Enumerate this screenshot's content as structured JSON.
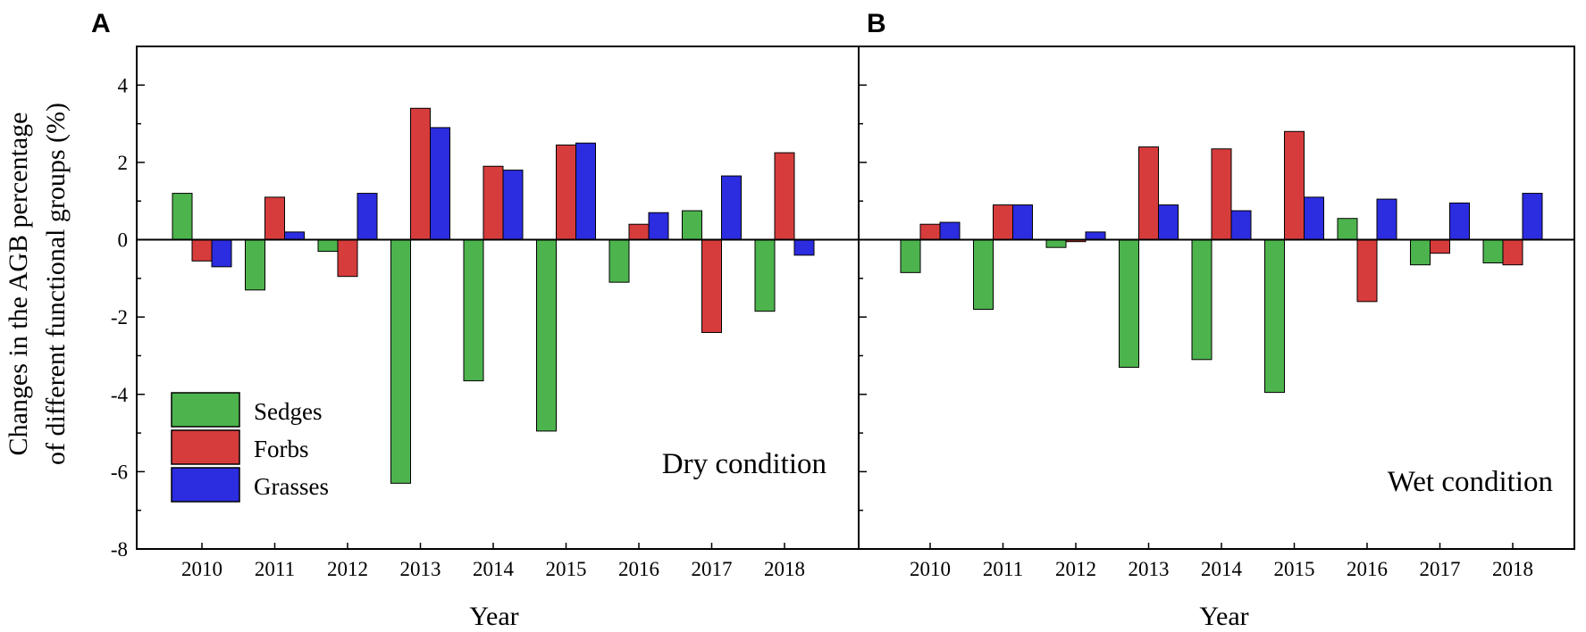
{
  "chart_data": {
    "type": "bar",
    "ylabel_lines": [
      "Changes in the AGB percentage",
      "of different functional groups (%)"
    ],
    "xlabel": "Year",
    "ylim": [
      -8,
      5
    ],
    "yticks": [
      4,
      2,
      0,
      -2,
      -4,
      -6,
      -8
    ],
    "ytick_labels": [
      "4",
      "2",
      "0",
      "-2",
      "-4",
      "-6",
      "-8"
    ],
    "categories": [
      "2010",
      "2011",
      "2012",
      "2013",
      "2014",
      "2015",
      "2016",
      "2017",
      "2018"
    ],
    "legend": [
      {
        "name": "Sedges",
        "color": "#4db34d"
      },
      {
        "name": "Forbs",
        "color": "#d63c3c"
      },
      {
        "name": "Grasses",
        "color": "#2c2ce0"
      }
    ],
    "panels": [
      {
        "letter": "A",
        "condition": "Dry condition",
        "series": [
          {
            "name": "Sedges",
            "values": [
              1.2,
              -1.3,
              -0.3,
              -6.3,
              -3.65,
              -4.95,
              -1.1,
              0.75,
              -1.85
            ]
          },
          {
            "name": "Forbs",
            "values": [
              -0.55,
              1.1,
              -0.95,
              3.4,
              1.9,
              2.45,
              0.4,
              -2.4,
              2.25
            ]
          },
          {
            "name": "Grasses",
            "values": [
              -0.7,
              0.2,
              1.2,
              2.9,
              1.8,
              2.5,
              0.7,
              1.65,
              -0.4
            ]
          }
        ]
      },
      {
        "letter": "B",
        "condition": "Wet condition",
        "series": [
          {
            "name": "Sedges",
            "values": [
              -0.85,
              -1.8,
              -0.2,
              -3.3,
              -3.1,
              -3.95,
              0.55,
              -0.65,
              -0.6
            ]
          },
          {
            "name": "Forbs",
            "values": [
              0.4,
              0.9,
              -0.05,
              2.4,
              2.35,
              2.8,
              -1.6,
              -0.35,
              -0.65
            ]
          },
          {
            "name": "Grasses",
            "values": [
              0.45,
              0.9,
              0.2,
              0.9,
              0.75,
              1.1,
              1.05,
              0.95,
              1.2
            ]
          }
        ]
      }
    ]
  }
}
